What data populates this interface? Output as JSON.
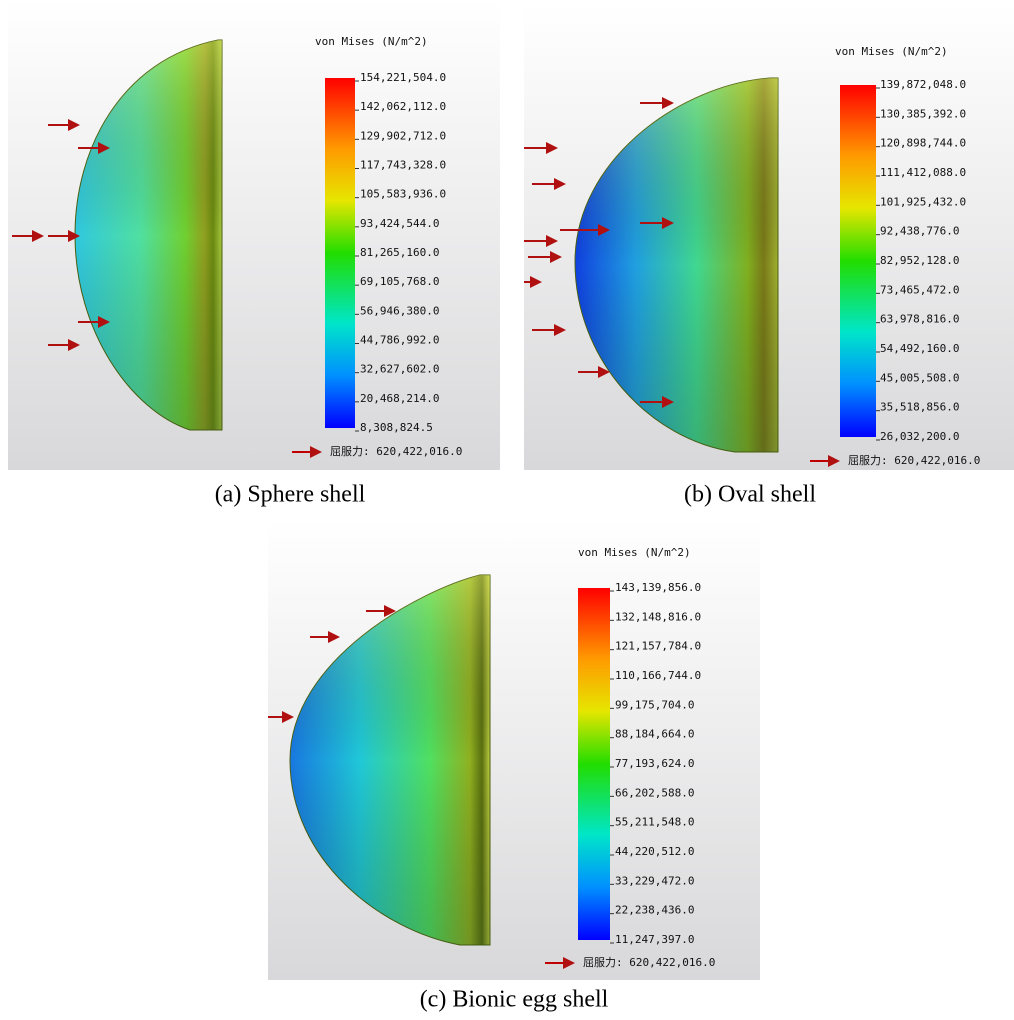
{
  "panels": [
    {
      "legend_title": "von Mises (N/m^2)",
      "ticks": [
        "154,221,504.0",
        "142,062,112.0",
        "129,902,712.0",
        "117,743,328.0",
        "105,583,936.0",
        "93,424,544.0",
        "81,265,160.0",
        "69,105,768.0",
        "56,946,380.0",
        "44,786,992.0",
        "32,627,602.0",
        "20,468,214.0",
        "8,308,824.5"
      ],
      "yield_label": "屈服力: 620,422,016.0",
      "caption": "(a) Sphere shell"
    },
    {
      "legend_title": "von Mises (N/m^2)",
      "ticks": [
        "139,872,048.0",
        "130,385,392.0",
        "120,898,744.0",
        "111,412,088.0",
        "101,925,432.0",
        "92,438,776.0",
        "82,952,128.0",
        "73,465,472.0",
        "63,978,816.0",
        "54,492,160.0",
        "45,005,508.0",
        "35,518,856.0",
        "26,032,200.0"
      ],
      "yield_label": "屈服力: 620,422,016.0",
      "caption": "(b) Oval shell"
    },
    {
      "legend_title": "von Mises (N/m^2)",
      "ticks": [
        "143,139,856.0",
        "132,148,816.0",
        "121,157,784.0",
        "110,166,744.0",
        "99,175,704.0",
        "88,184,664.0",
        "77,193,624.0",
        "66,202,588.0",
        "55,211,548.0",
        "44,220,512.0",
        "33,229,472.0",
        "22,238,436.0",
        "11,247,397.0"
      ],
      "yield_label": "屈服力: 620,422,016.0",
      "caption": "(c) Bionic egg shell"
    }
  ]
}
